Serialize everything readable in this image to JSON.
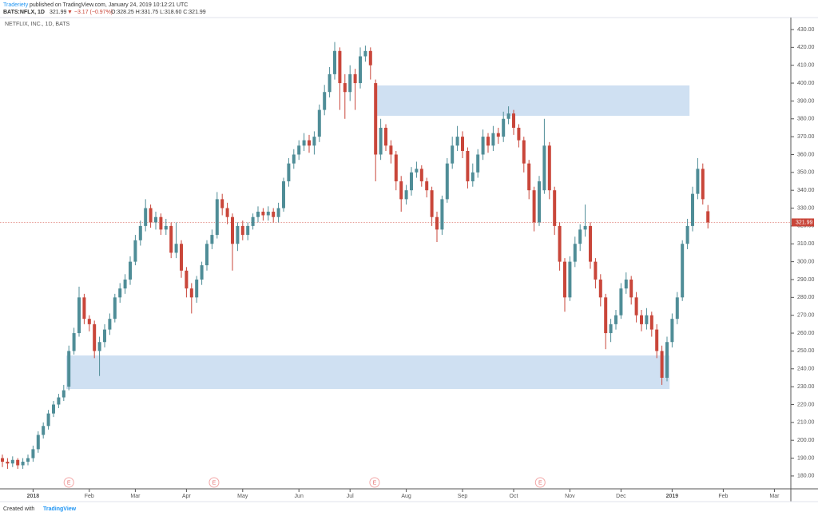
{
  "header": {
    "author": "Traderiety",
    "published": "published on TradingView.com, January 24, 2019 10:12:21 UTC",
    "symbol": "BATS:NFLX, 1D",
    "last": "321.99",
    "change": "▼ −3.17 (−0.97%)",
    "ohlc": "O:328.25 H:331.75 L:318.60 C:321.99"
  },
  "footer": {
    "created": "Created with",
    "brand": "TradingView"
  },
  "chart_data": {
    "type": "candlestick",
    "title": "NETFLIX, INC., 1D, BATS",
    "up_color": "#4f8d97",
    "down_color": "#c9463a",
    "zone_color": "#cfe0f2",
    "grid": false,
    "ylim": [
      172.8,
      436.7
    ],
    "yticks": [
      {
        "value": 180,
        "label": "180.00"
      },
      {
        "value": 190,
        "label": "190.00"
      },
      {
        "value": 200,
        "label": "200.00"
      },
      {
        "value": 210,
        "label": "210.00"
      },
      {
        "value": 220,
        "label": "220.00"
      },
      {
        "value": 230,
        "label": "230.00"
      },
      {
        "value": 240,
        "label": "240.00"
      },
      {
        "value": 250,
        "label": "250.00"
      },
      {
        "value": 260,
        "label": "260.00"
      },
      {
        "value": 270,
        "label": "270.00"
      },
      {
        "value": 280,
        "label": "280.00"
      },
      {
        "value": 290,
        "label": "290.00"
      },
      {
        "value": 300,
        "label": "300.00"
      },
      {
        "value": 310,
        "label": "310.00"
      },
      {
        "value": 320,
        "label": "320.00"
      },
      {
        "value": 330,
        "label": "330.00"
      },
      {
        "value": 340,
        "label": "340.00"
      },
      {
        "value": 350,
        "label": "350.00"
      },
      {
        "value": 360,
        "label": "360.00"
      },
      {
        "value": 370,
        "label": "370.00"
      },
      {
        "value": 380,
        "label": "380.00"
      },
      {
        "value": 390,
        "label": "390.00"
      },
      {
        "value": 400,
        "label": "400.00"
      },
      {
        "value": 410,
        "label": "410.00"
      },
      {
        "value": 420,
        "label": "420.00"
      },
      {
        "value": 430,
        "label": "430.00"
      }
    ],
    "categories": [
      null,
      null,
      null,
      null,
      null,
      null,
      "2018",
      null,
      null,
      null,
      null,
      null,
      null,
      null,
      null,
      null,
      null,
      "Feb",
      null,
      null,
      null,
      null,
      null,
      null,
      null,
      null,
      "Mar",
      null,
      null,
      null,
      null,
      null,
      null,
      null,
      null,
      null,
      "Apr",
      null,
      null,
      null,
      null,
      null,
      null,
      null,
      null,
      null,
      null,
      "May",
      null,
      null,
      null,
      null,
      null,
      null,
      null,
      null,
      null,
      null,
      "Jun",
      null,
      null,
      null,
      null,
      null,
      null,
      null,
      null,
      null,
      "Jul",
      null,
      null,
      null,
      null,
      null,
      null,
      null,
      null,
      null,
      null,
      "Aug",
      null,
      null,
      null,
      null,
      null,
      null,
      null,
      null,
      null,
      null,
      "Sep",
      null,
      null,
      null,
      null,
      null,
      null,
      null,
      null,
      null,
      "Oct",
      null,
      null,
      null,
      null,
      null,
      null,
      null,
      null,
      null,
      null,
      "Nov",
      null,
      null,
      null,
      null,
      null,
      null,
      null,
      null,
      null,
      "Dec",
      null,
      null,
      null,
      null,
      null,
      null,
      null,
      null,
      null,
      "2019",
      null,
      null,
      null,
      null,
      null,
      null,
      null,
      null,
      null,
      "Feb",
      null,
      null,
      null,
      null,
      null,
      null,
      null,
      null,
      null,
      "Mar",
      null,
      null,
      null
    ],
    "open": [
      190,
      188,
      187,
      189,
      186,
      188,
      190,
      195,
      203,
      208,
      215,
      220,
      224,
      230,
      250,
      260,
      280,
      268,
      265,
      250,
      255,
      262,
      268,
      280,
      285,
      290,
      300,
      312,
      320,
      330,
      322,
      325,
      318,
      320,
      305,
      310,
      295,
      285,
      280,
      290,
      298,
      310,
      315,
      335,
      330,
      325,
      310,
      320,
      315,
      320,
      325,
      328,
      326,
      328,
      325,
      330,
      345,
      355,
      360,
      365,
      368,
      365,
      370,
      385,
      395,
      405,
      418,
      400,
      395,
      405,
      400,
      415,
      418,
      400,
      360,
      375,
      365,
      360,
      345,
      335,
      340,
      350,
      352,
      345,
      340,
      325,
      318,
      335,
      355,
      365,
      370,
      362,
      345,
      350,
      360,
      370,
      365,
      372,
      370,
      380,
      383,
      375,
      368,
      355,
      340,
      322,
      340,
      365,
      340,
      320,
      300,
      280,
      300,
      310,
      318,
      320,
      300,
      290,
      280,
      260,
      265,
      270,
      285,
      290,
      280,
      270,
      265,
      270,
      262,
      250,
      235,
      255,
      268,
      280,
      310,
      320,
      338,
      352,
      328.25,
      null,
      null,
      null,
      null,
      null,
      null,
      null,
      null,
      null,
      null,
      null,
      null,
      null,
      null,
      null,
      null
    ],
    "high": [
      192,
      190,
      191,
      190,
      190,
      192,
      197,
      205,
      210,
      217,
      222,
      226,
      231,
      253,
      263,
      286,
      282,
      270,
      267,
      258,
      265,
      271,
      282,
      288,
      293,
      303,
      315,
      323,
      335,
      332,
      328,
      327,
      324,
      322,
      322,
      312,
      297,
      288,
      292,
      300,
      312,
      318,
      339,
      338,
      333,
      327,
      322,
      323,
      322,
      327,
      331,
      330,
      331,
      330,
      333,
      347,
      358,
      363,
      368,
      372,
      371,
      373,
      388,
      399,
      409,
      423,
      420,
      405,
      410,
      408,
      420,
      421,
      420,
      402,
      380,
      377,
      368,
      362,
      348,
      343,
      353,
      356,
      354,
      347,
      342,
      328,
      337,
      358,
      370,
      376,
      373,
      364,
      355,
      363,
      374,
      372,
      376,
      375,
      384,
      387,
      385,
      377,
      370,
      357,
      342,
      348,
      380,
      367,
      342,
      322,
      302,
      303,
      314,
      321,
      332,
      322,
      302,
      293,
      282,
      268,
      273,
      288,
      294,
      292,
      283,
      273,
      274,
      272,
      265,
      253,
      258,
      271,
      283,
      312,
      324,
      342,
      358,
      355,
      331.75,
      null,
      null,
      null,
      null,
      null,
      null,
      null,
      null,
      null,
      null,
      null,
      null,
      null,
      null,
      null,
      null
    ],
    "low": [
      185,
      184,
      185,
      184,
      184,
      186,
      188,
      193,
      201,
      206,
      213,
      218,
      222,
      228,
      248,
      258,
      265,
      261,
      246,
      236,
      252,
      259,
      266,
      277,
      282,
      287,
      298,
      309,
      317,
      319,
      318,
      315,
      315,
      302,
      302,
      291,
      280,
      271,
      277,
      287,
      295,
      307,
      313,
      326,
      321,
      295,
      306,
      312,
      312,
      318,
      322,
      323,
      323,
      322,
      322,
      328,
      342,
      352,
      357,
      362,
      361,
      360,
      367,
      382,
      392,
      402,
      385,
      380,
      390,
      385,
      397,
      412,
      402,
      345,
      357,
      362,
      355,
      340,
      328,
      332,
      337,
      347,
      342,
      336,
      320,
      311,
      315,
      333,
      352,
      362,
      358,
      341,
      342,
      347,
      357,
      361,
      362,
      366,
      367,
      377,
      371,
      364,
      350,
      335,
      317,
      320,
      338,
      335,
      315,
      295,
      272,
      278,
      297,
      306,
      314,
      296,
      285,
      275,
      251,
      255,
      262,
      268,
      282,
      276,
      266,
      261,
      262,
      258,
      246,
      231,
      233,
      252,
      265,
      278,
      307,
      317,
      335,
      332,
      318.6,
      null,
      null,
      null,
      null,
      null,
      null,
      null,
      null,
      null,
      null,
      null,
      null,
      null,
      null,
      null,
      null
    ],
    "close": [
      188,
      187,
      189,
      186,
      188,
      190,
      195,
      203,
      208,
      215,
      220,
      224,
      228,
      250,
      260,
      280,
      268,
      265,
      250,
      255,
      262,
      268,
      280,
      285,
      290,
      300,
      312,
      320,
      330,
      322,
      325,
      318,
      320,
      305,
      310,
      295,
      285,
      280,
      290,
      298,
      310,
      315,
      335,
      330,
      325,
      310,
      320,
      315,
      320,
      325,
      328,
      326,
      328,
      325,
      330,
      345,
      355,
      360,
      365,
      368,
      365,
      370,
      385,
      395,
      405,
      418,
      400,
      395,
      405,
      400,
      415,
      418,
      410,
      360,
      375,
      365,
      360,
      345,
      335,
      340,
      350,
      352,
      345,
      340,
      325,
      318,
      335,
      355,
      365,
      370,
      362,
      345,
      350,
      360,
      370,
      365,
      372,
      370,
      380,
      383,
      375,
      368,
      355,
      340,
      322,
      345,
      365,
      340,
      320,
      300,
      280,
      300,
      310,
      318,
      320,
      300,
      290,
      280,
      260,
      265,
      270,
      285,
      290,
      280,
      270,
      265,
      270,
      262,
      250,
      235,
      255,
      268,
      280,
      310,
      320,
      338,
      352,
      335,
      321.99,
      null,
      null,
      null,
      null,
      null,
      null,
      null,
      null,
      null,
      null,
      null,
      null,
      null,
      null,
      null,
      null
    ],
    "last_price": 321.99,
    "zones": [
      {
        "from": 73.3,
        "to": 134.4,
        "low": 381.7,
        "high": 398.7
      },
      {
        "from": 12.5,
        "to": 130.5,
        "low": 228.7,
        "high": 247.5
      }
    ],
    "events": [
      {
        "at": 13,
        "label": "E"
      },
      {
        "at": 41.4,
        "label": "E"
      },
      {
        "at": 72.8,
        "label": "E"
      },
      {
        "at": 105.2,
        "label": "E"
      }
    ]
  }
}
